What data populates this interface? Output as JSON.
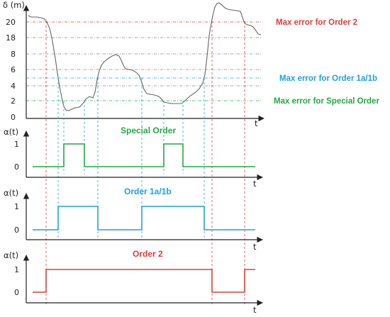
{
  "colors": {
    "order2": "#e63a35",
    "order1ab": "#19a3e0",
    "special": "#22a845",
    "signal": "#666666",
    "axis": "#222222",
    "grid": "#888888"
  },
  "top_panel": {
    "ylabel": "δ (m)",
    "xlabel": "t",
    "ticks": [
      "20",
      "18",
      "8",
      "6",
      "4",
      "2",
      "0"
    ],
    "annotations": {
      "order2": "Max error for Order 2",
      "order1ab": "Max error for Order 1a/1b",
      "special": "Max error for Special Order"
    }
  },
  "panels": [
    {
      "title": "Special Order",
      "ylabel": "α(t)",
      "xlabel": "t",
      "tick_1": "1",
      "tick_0": "0"
    },
    {
      "title": "Order 1a/1b",
      "ylabel": "α(t)",
      "xlabel": "t",
      "tick_1": "1",
      "tick_0": "0"
    },
    {
      "title": "Order 2",
      "ylabel": "α(t)",
      "xlabel": "t",
      "tick_1": "1",
      "tick_0": "0"
    }
  ],
  "chart_data": [
    {
      "type": "line",
      "ylabel": "δ (m)",
      "xlabel": "t",
      "y_ticks": [
        "0",
        "2",
        "4",
        "6",
        "8",
        "18",
        "20"
      ],
      "thresholds": [
        {
          "name": "Max error for Order 2",
          "value": 20
        },
        {
          "name": "Max error for Order 1a/1b",
          "value": 5
        },
        {
          "name": "Max error for Special Order",
          "value": 2
        }
      ]
    },
    {
      "type": "line",
      "title": "Special Order",
      "ylabel": "α(t)",
      "xlabel": "t",
      "ylim": [
        0,
        1
      ],
      "values": [
        0,
        1,
        0,
        1,
        0
      ]
    },
    {
      "type": "line",
      "title": "Order 1a/1b",
      "ylabel": "α(t)",
      "xlabel": "t",
      "ylim": [
        0,
        1
      ],
      "values": [
        0,
        1,
        0,
        1,
        0
      ]
    },
    {
      "type": "line",
      "title": "Order 2",
      "ylabel": "α(t)",
      "xlabel": "t",
      "ylim": [
        0,
        1
      ],
      "values": [
        0,
        1,
        0,
        1
      ]
    }
  ]
}
